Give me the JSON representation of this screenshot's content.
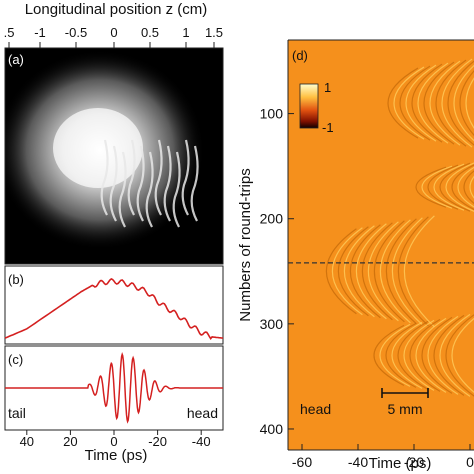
{
  "chart_data": [
    {
      "panel": "(a)",
      "type": "heatmap",
      "xlabel": "Longitudinal position z (cm)",
      "x_ticks": [
        ".5",
        "-1",
        "-0.5",
        "0",
        "0.5",
        "1",
        "1.5"
      ],
      "colormap": "grayscale"
    },
    {
      "panel": "(b)",
      "type": "line",
      "color": "#d42020",
      "x": [
        50,
        40,
        30,
        20,
        15,
        10,
        5,
        0,
        -5,
        -10,
        -15,
        -20,
        -25,
        -30,
        -35,
        -40,
        -45,
        -50
      ],
      "y": [
        0.03,
        0.18,
        0.42,
        0.66,
        0.78,
        0.88,
        0.93,
        0.95,
        0.92,
        0.86,
        0.78,
        0.62,
        0.5,
        0.38,
        0.24,
        0.12,
        0.05,
        0.03
      ],
      "ylim": [
        0,
        1
      ]
    },
    {
      "panel": "(c)",
      "type": "line",
      "color": "#d42020",
      "x_range": [
        50,
        -50
      ],
      "ylim": [
        -1,
        1
      ],
      "annotations": [
        "tail",
        "head"
      ],
      "x_ticks": [
        "40",
        "20",
        "0",
        "-20",
        "-40"
      ],
      "xlabel": "Time (ps)"
    },
    {
      "panel": "(d)",
      "type": "heatmap",
      "xlabel": "Time (ps)",
      "ylabel": "Numbers of round-trips",
      "x_ticks": [
        "-60",
        "-40",
        "-20",
        "0"
      ],
      "y_ticks": [
        "100",
        "200",
        "300",
        "400"
      ],
      "xlim": [
        -65,
        0
      ],
      "ylim": [
        30,
        420
      ],
      "colorbar": {
        "max_label": "1",
        "min_label": "-1"
      },
      "dashed_line_at_roundtrip": 242,
      "scale_bar_label": "5 mm",
      "annotation": "head",
      "colors": {
        "background": "#f5901c",
        "fringe_dark": "#c46a08",
        "fringe_light": "#ffd060"
      }
    }
  ]
}
